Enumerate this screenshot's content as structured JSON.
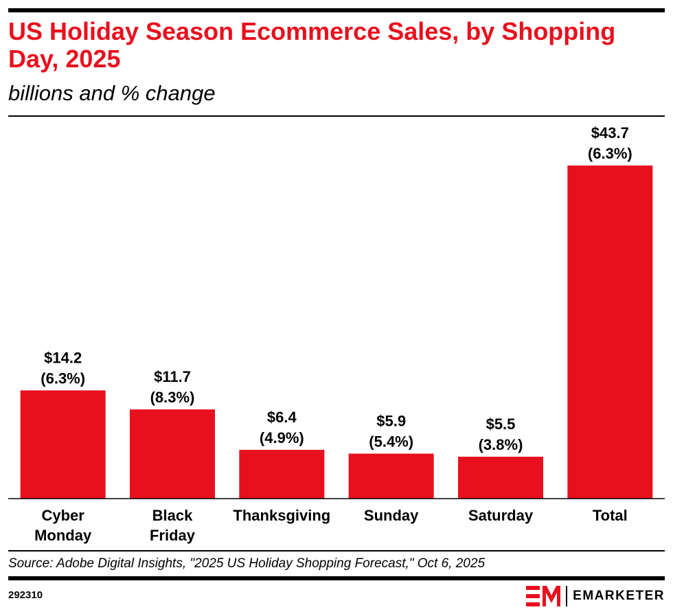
{
  "header": {
    "title": "US Holiday Season Ecommerce Sales, by Shopping Day, 2025",
    "subtitle": "billions and % change"
  },
  "chart_data": {
    "type": "bar",
    "categories": [
      "Cyber Monday",
      "Black Friday",
      "Thanksgiving",
      "Sunday",
      "Saturday",
      "Total"
    ],
    "values": [
      14.2,
      11.7,
      6.4,
      5.9,
      5.5,
      43.7
    ],
    "value_labels": [
      "$14.2",
      "$11.7",
      "$6.4",
      "$5.9",
      "$5.5",
      "$43.7"
    ],
    "change_labels": [
      "(6.3%)",
      "(8.3%)",
      "(4.9%)",
      "(5.4%)",
      "(3.8%)",
      "(6.3%)"
    ],
    "title": "US Holiday Season Ecommerce Sales, by Shopping Day, 2025",
    "ylabel": "",
    "xlabel": "",
    "ylim": [
      0,
      43.7
    ],
    "grid": false,
    "bar_color": "#e8101e"
  },
  "footer": {
    "source": "Source: Adobe Digital Insights, \"2025 US Holiday Shopping Forecast,\" Oct 6, 2025",
    "chart_id": "292310",
    "brand": "EMARKETER",
    "logo_icon": "em-logo-icon"
  }
}
